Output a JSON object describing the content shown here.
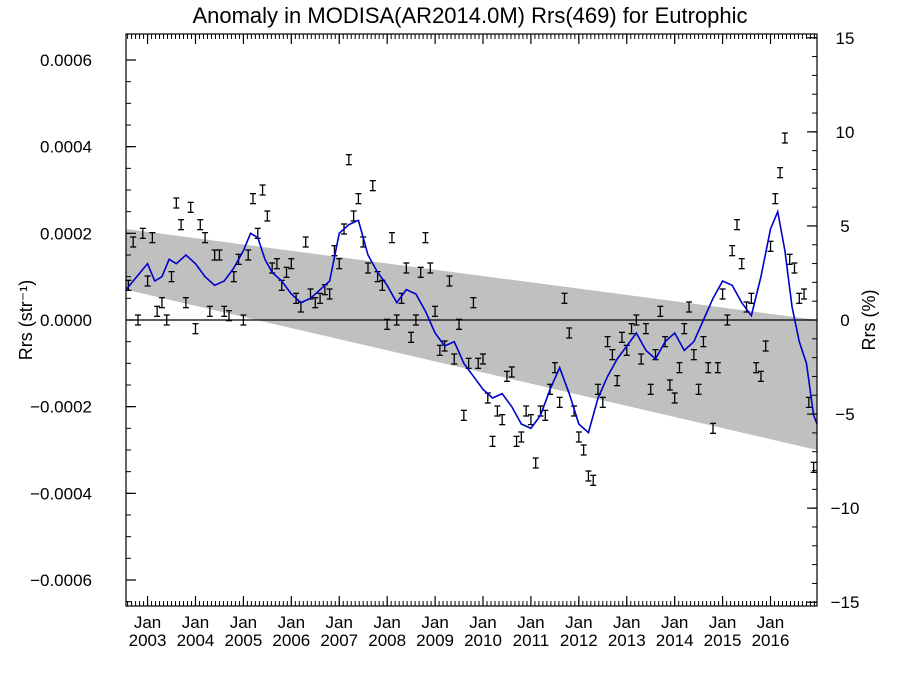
{
  "chart_data": {
    "type": "scatter",
    "title": "Anomaly in MODISA(AR2014.0M) Rrs(469) for Eutrophic",
    "ylabel": "Rrs (str⁻¹)",
    "y2label": "Rrs (%)",
    "ylim": [
      -0.00066,
      0.00066
    ],
    "y2lim": [
      -15.2,
      15.2
    ],
    "xlim": [
      2002.55,
      2016.97
    ],
    "yticks": [
      {
        "value": 0.0006,
        "label": "0.0006"
      },
      {
        "value": 0.0004,
        "label": "0.0004"
      },
      {
        "value": 0.0002,
        "label": "0.0002"
      },
      {
        "value": 0.0,
        "label": "0.0000"
      },
      {
        "value": -0.0002,
        "label": "−0.0002"
      },
      {
        "value": -0.0004,
        "label": "−0.0004"
      },
      {
        "value": -0.0006,
        "label": "−0.0006"
      }
    ],
    "y2ticks": [
      {
        "value": 15,
        "label": "15"
      },
      {
        "value": 10,
        "label": "10"
      },
      {
        "value": 5,
        "label": "5"
      },
      {
        "value": 0,
        "label": "0"
      },
      {
        "value": -5,
        "label": "−5"
      },
      {
        "value": -10,
        "label": "−10"
      },
      {
        "value": -15,
        "label": "−15"
      }
    ],
    "xticks": [
      {
        "value": 2003.0,
        "month": "Jan",
        "year": "2003"
      },
      {
        "value": 2004.0,
        "month": "Jan",
        "year": "2004"
      },
      {
        "value": 2005.0,
        "month": "Jan",
        "year": "2005"
      },
      {
        "value": 2006.0,
        "month": "Jan",
        "year": "2006"
      },
      {
        "value": 2007.0,
        "month": "Jan",
        "year": "2007"
      },
      {
        "value": 2008.0,
        "month": "Jan",
        "year": "2008"
      },
      {
        "value": 2009.0,
        "month": "Jan",
        "year": "2009"
      },
      {
        "value": 2010.0,
        "month": "Jan",
        "year": "2010"
      },
      {
        "value": 2011.0,
        "month": "Jan",
        "year": "2011"
      },
      {
        "value": 2012.0,
        "month": "Jan",
        "year": "2012"
      },
      {
        "value": 2013.0,
        "month": "Jan",
        "year": "2013"
      },
      {
        "value": 2014.0,
        "month": "Jan",
        "year": "2014"
      },
      {
        "value": 2015.0,
        "month": "Jan",
        "year": "2015"
      },
      {
        "value": 2016.0,
        "month": "Jan",
        "year": "2016"
      }
    ],
    "band": {
      "color": "#c0c0c0",
      "upper": [
        [
          2002.55,
          0.00021
        ],
        [
          2016.97,
          0.0
        ]
      ],
      "lower": [
        [
          2002.55,
          7e-05
        ],
        [
          2016.97,
          -0.0003
        ]
      ]
    },
    "zero_line": true,
    "smooth_line": {
      "color": "#0000cc",
      "x": [
        2002.55,
        2002.7,
        2002.85,
        2003.0,
        2003.15,
        2003.3,
        2003.45,
        2003.6,
        2003.8,
        2004.0,
        2004.2,
        2004.4,
        2004.6,
        2004.8,
        2005.0,
        2005.15,
        2005.3,
        2005.45,
        2005.6,
        2005.8,
        2006.0,
        2006.2,
        2006.4,
        2006.6,
        2006.8,
        2007.0,
        2007.2,
        2007.4,
        2007.6,
        2007.8,
        2008.0,
        2008.2,
        2008.4,
        2008.6,
        2008.8,
        2009.0,
        2009.2,
        2009.4,
        2009.6,
        2009.8,
        2010.0,
        2010.2,
        2010.4,
        2010.6,
        2010.8,
        2011.0,
        2011.2,
        2011.4,
        2011.6,
        2011.8,
        2012.0,
        2012.2,
        2012.4,
        2012.6,
        2012.8,
        2013.0,
        2013.2,
        2013.4,
        2013.6,
        2013.8,
        2014.0,
        2014.2,
        2014.4,
        2014.6,
        2014.8,
        2015.0,
        2015.2,
        2015.4,
        2015.6,
        2015.8,
        2016.0,
        2016.15,
        2016.3,
        2016.45,
        2016.6,
        2016.75,
        2016.9,
        2016.97
      ],
      "y": [
        7e-05,
        9e-05,
        0.00011,
        0.00013,
        9e-05,
        0.0001,
        0.00014,
        0.00013,
        0.00015,
        0.00013,
        0.0001,
        8e-05,
        9e-05,
        0.00012,
        0.00016,
        0.0002,
        0.00019,
        0.00014,
        0.00011,
        9e-05,
        6e-05,
        4e-05,
        5e-05,
        7e-05,
        9e-05,
        0.0002,
        0.00022,
        0.00023,
        0.00015,
        0.00011,
        8e-05,
        4e-05,
        7e-05,
        6e-05,
        2e-05,
        -3e-05,
        -6e-05,
        -5e-05,
        -0.0001,
        -0.00013,
        -0.00016,
        -0.00018,
        -0.00017,
        -0.0002,
        -0.00024,
        -0.00025,
        -0.00022,
        -0.00016,
        -0.00011,
        -0.00017,
        -0.00024,
        -0.00026,
        -0.00018,
        -0.00013,
        -9e-05,
        -6e-05,
        -3e-05,
        -7e-05,
        -9e-05,
        -5e-05,
        -3e-05,
        -7e-05,
        -5e-05,
        0.0,
        5e-05,
        9e-05,
        8e-05,
        4e-05,
        1e-05,
        0.0001,
        0.00021,
        0.00025,
        0.00016,
        3e-05,
        -5e-05,
        -0.0001,
        -0.00022,
        -0.00024
      ]
    },
    "points": {
      "x": [
        2002.6,
        2002.7,
        2002.8,
        2002.9,
        2003.0,
        2003.1,
        2003.2,
        2003.3,
        2003.4,
        2003.5,
        2003.6,
        2003.7,
        2003.8,
        2003.9,
        2004.0,
        2004.1,
        2004.2,
        2004.3,
        2004.4,
        2004.5,
        2004.6,
        2004.7,
        2004.8,
        2004.9,
        2005.0,
        2005.1,
        2005.2,
        2005.3,
        2005.4,
        2005.5,
        2005.6,
        2005.7,
        2005.8,
        2005.9,
        2006.0,
        2006.1,
        2006.2,
        2006.3,
        2006.4,
        2006.5,
        2006.6,
        2006.7,
        2006.8,
        2006.9,
        2007.0,
        2007.1,
        2007.2,
        2007.3,
        2007.4,
        2007.5,
        2007.6,
        2007.7,
        2007.8,
        2007.9,
        2008.0,
        2008.1,
        2008.2,
        2008.3,
        2008.4,
        2008.5,
        2008.6,
        2008.7,
        2008.8,
        2008.9,
        2009.0,
        2009.1,
        2009.2,
        2009.3,
        2009.4,
        2009.5,
        2009.6,
        2009.7,
        2009.8,
        2009.9,
        2010.0,
        2010.1,
        2010.2,
        2010.3,
        2010.4,
        2010.5,
        2010.6,
        2010.7,
        2010.8,
        2010.9,
        2011.0,
        2011.1,
        2011.2,
        2011.3,
        2011.4,
        2011.5,
        2011.6,
        2011.7,
        2011.8,
        2011.9,
        2012.0,
        2012.1,
        2012.2,
        2012.3,
        2012.4,
        2012.5,
        2012.6,
        2012.7,
        2012.8,
        2012.9,
        2013.0,
        2013.1,
        2013.2,
        2013.3,
        2013.4,
        2013.5,
        2013.6,
        2013.7,
        2013.8,
        2013.9,
        2014.0,
        2014.1,
        2014.2,
        2014.3,
        2014.4,
        2014.5,
        2014.6,
        2014.7,
        2014.8,
        2014.9,
        2015.0,
        2015.1,
        2015.2,
        2015.3,
        2015.4,
        2015.5,
        2015.6,
        2015.7,
        2015.8,
        2015.9,
        2016.0,
        2016.1,
        2016.2,
        2016.3,
        2016.4,
        2016.5,
        2016.6,
        2016.7,
        2016.8,
        2016.9
      ],
      "y": [
        8e-05,
        0.00018,
        0.0,
        0.0002,
        9e-05,
        0.00019,
        2e-05,
        4e-05,
        0.0,
        0.0001,
        0.00027,
        0.00022,
        4e-05,
        0.00026,
        -2e-05,
        0.00022,
        0.00019,
        2e-05,
        0.00015,
        0.00015,
        2e-05,
        1e-05,
        0.0001,
        0.00014,
        0.0,
        0.00015,
        0.00028,
        0.0002,
        0.0003,
        0.00024,
        0.00012,
        0.00013,
        8e-05,
        0.00011,
        0.00013,
        5e-05,
        3e-05,
        0.00018,
        6e-05,
        4e-05,
        5e-05,
        7e-05,
        6e-05,
        0.00016,
        0.00013,
        0.00021,
        0.00037,
        0.00024,
        0.00028,
        0.00018,
        0.00012,
        0.00031,
        0.0001,
        8e-05,
        -1e-05,
        0.00019,
        0.0,
        5e-05,
        0.00012,
        -4e-05,
        0.0,
        0.00011,
        0.00019,
        0.00012,
        2e-05,
        -7e-05,
        -6e-05,
        9e-05,
        -9e-05,
        -1e-05,
        -0.00022,
        -0.0001,
        4e-05,
        -0.0001,
        -9e-05,
        -0.00018,
        -0.00028,
        -0.00021,
        -0.00023,
        -0.00013,
        -0.00012,
        -0.00028,
        -0.00027,
        -0.00021,
        -0.00023,
        -0.00033,
        -0.00021,
        -0.00022,
        -0.00016,
        -0.00011,
        -0.00019,
        5e-05,
        -3e-05,
        -0.00021,
        -0.00027,
        -0.0003,
        -0.00036,
        -0.00037,
        -0.00016,
        -0.00019,
        -5e-05,
        -8e-05,
        -0.00014,
        -4e-05,
        -7e-05,
        -2e-05,
        0.0,
        -9e-05,
        -2e-05,
        -0.00016,
        -8e-05,
        2e-05,
        -5e-05,
        -0.00015,
        -0.00018,
        -0.00011,
        -2e-05,
        3e-05,
        -8e-05,
        -0.00016,
        -5e-05,
        -0.00011,
        -0.00025,
        -0.00011,
        6e-05,
        0.0,
        0.00016,
        0.00022,
        0.00013,
        3e-05,
        5e-05,
        -0.00011,
        -0.00013,
        -6e-05,
        0.00017,
        0.00028,
        0.00034,
        0.00042,
        0.00014,
        0.00012,
        5e-05,
        6e-05,
        -0.00019,
        -0.00034
      ]
    }
  }
}
